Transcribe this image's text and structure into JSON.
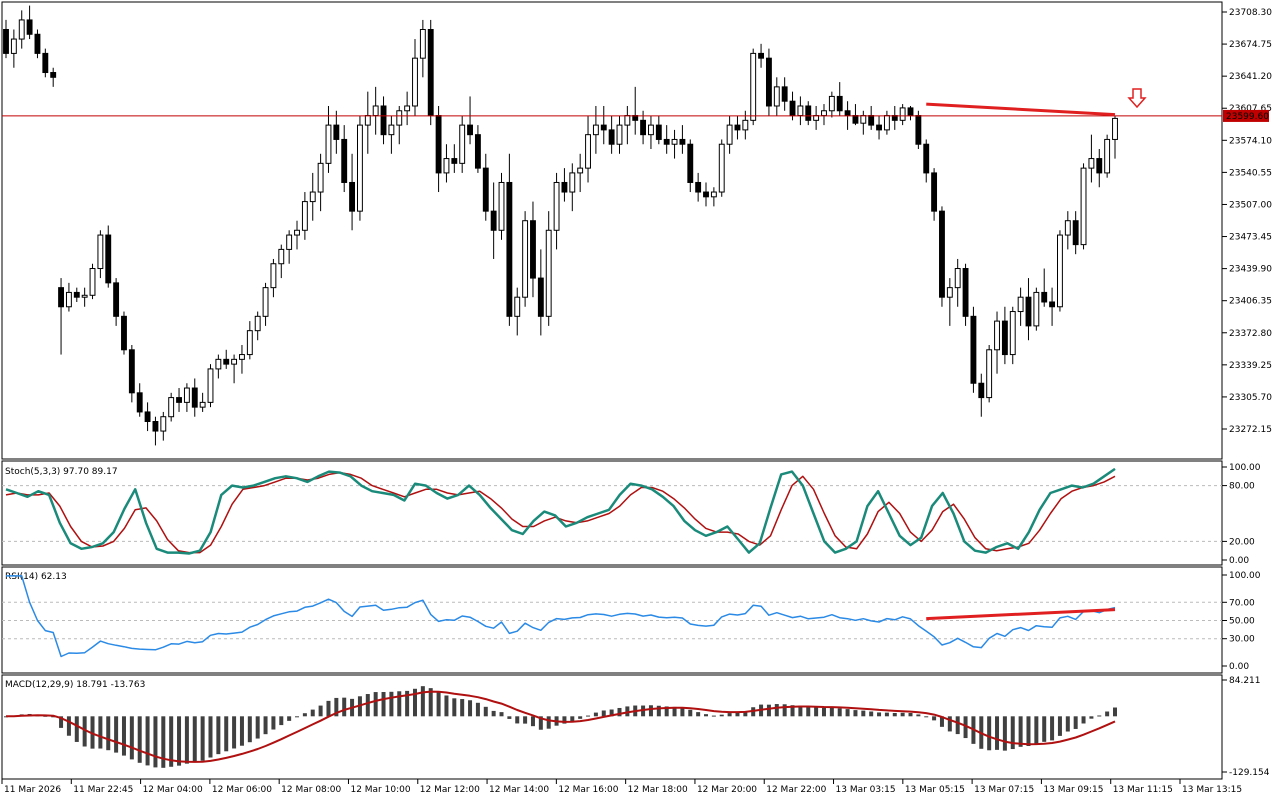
{
  "main": {
    "y_ticks": [
      "23708.30",
      "23674.75",
      "23641.20",
      "23607.65",
      "23574.10",
      "23540.55",
      "23507.00",
      "23473.45",
      "23439.90",
      "23406.35",
      "23372.80",
      "23339.25",
      "23305.70",
      "23272.15"
    ],
    "y_tick_values": [
      23708.3,
      23674.75,
      23641.2,
      23607.65,
      23574.1,
      23540.55,
      23507.0,
      23473.45,
      23439.9,
      23406.35,
      23372.8,
      23339.25,
      23305.7,
      23272.15
    ],
    "current_price": "23599.60",
    "price_line_color": "#c00000",
    "signal_arrow_icon": "hollow-down-arrow-icon",
    "signal_arrow_color": "#e02020"
  },
  "time_labels": [
    "11 Mar 2026",
    "11 Mar 22:45",
    "12 Mar 04:00",
    "12 Mar 06:00",
    "12 Mar 08:00",
    "12 Mar 10:00",
    "12 Mar 12:00",
    "12 Mar 14:00",
    "12 Mar 16:00",
    "12 Mar 18:00",
    "12 Mar 20:00",
    "12 Mar 22:00",
    "13 Mar 03:15",
    "13 Mar 05:15",
    "13 Mar 07:15",
    "13 Mar 09:15",
    "13 Mar 11:15",
    "13 Mar 13:15"
  ],
  "stoch": {
    "label": "Stoch(5,3,3) 97.70 89.17",
    "levels": [
      "100.00",
      "80.00",
      "20.00",
      "0.00"
    ],
    "main_color": "#1a8a7a",
    "signal_color": "#b01010"
  },
  "rsi": {
    "label": "RSI(14) 62.13",
    "levels": [
      "100.00",
      "70.00",
      "50.00",
      "30.00",
      "0.00"
    ],
    "line_color": "#2a8ae6"
  },
  "macd": {
    "label": "MACD(12,29,9) 18.791 -13.763",
    "levels": [
      "84.211",
      "-129.154"
    ],
    "hist_color": "#404040",
    "signal_color": "#b01010"
  },
  "divergence_color": "#e02020",
  "chart_data": {
    "type": "candlestick",
    "title": "",
    "ylim": [
      23255,
      23715
    ],
    "candles_ohlc": [
      [
        23690,
        23700,
        23660,
        23665
      ],
      [
        23665,
        23690,
        23650,
        23680
      ],
      [
        23680,
        23710,
        23670,
        23700
      ],
      [
        23700,
        23715,
        23680,
        23685
      ],
      [
        23685,
        23690,
        23660,
        23665
      ],
      [
        23665,
        23670,
        23640,
        23645
      ],
      [
        23645,
        23650,
        23630,
        23640
      ],
      [
        23420,
        23430,
        23350,
        23400
      ],
      [
        23400,
        23425,
        23395,
        23415
      ],
      [
        23415,
        23420,
        23405,
        23410
      ],
      [
        23410,
        23420,
        23400,
        23412
      ],
      [
        23412,
        23445,
        23408,
        23440
      ],
      [
        23440,
        23480,
        23430,
        23475
      ],
      [
        23475,
        23485,
        23420,
        23425
      ],
      [
        23425,
        23430,
        23380,
        23390
      ],
      [
        23390,
        23395,
        23350,
        23355
      ],
      [
        23355,
        23360,
        23300,
        23310
      ],
      [
        23310,
        23320,
        23285,
        23290
      ],
      [
        23290,
        23300,
        23270,
        23280
      ],
      [
        23280,
        23285,
        23255,
        23270
      ],
      [
        23270,
        23290,
        23260,
        23285
      ],
      [
        23285,
        23310,
        23280,
        23305
      ],
      [
        23305,
        23315,
        23290,
        23300
      ],
      [
        23300,
        23320,
        23290,
        23315
      ],
      [
        23315,
        23325,
        23285,
        23295
      ],
      [
        23295,
        23310,
        23290,
        23300
      ],
      [
        23300,
        23340,
        23295,
        23335
      ],
      [
        23335,
        23350,
        23325,
        23345
      ],
      [
        23345,
        23355,
        23335,
        23340
      ],
      [
        23340,
        23350,
        23320,
        23345
      ],
      [
        23345,
        23360,
        23330,
        23350
      ],
      [
        23350,
        23385,
        23345,
        23375
      ],
      [
        23375,
        23395,
        23365,
        23390
      ],
      [
        23390,
        23425,
        23380,
        23420
      ],
      [
        23420,
        23450,
        23410,
        23445
      ],
      [
        23445,
        23465,
        23430,
        23460
      ],
      [
        23460,
        23480,
        23445,
        23475
      ],
      [
        23475,
        23490,
        23460,
        23480
      ],
      [
        23480,
        23520,
        23470,
        23510
      ],
      [
        23510,
        23540,
        23490,
        23520
      ],
      [
        23520,
        23560,
        23500,
        23550
      ],
      [
        23550,
        23610,
        23540,
        23590
      ],
      [
        23590,
        23605,
        23560,
        23575
      ],
      [
        23575,
        23590,
        23520,
        23530
      ],
      [
        23530,
        23560,
        23480,
        23500
      ],
      [
        23500,
        23600,
        23490,
        23590
      ],
      [
        23590,
        23625,
        23560,
        23600
      ],
      [
        23600,
        23630,
        23580,
        23610
      ],
      [
        23610,
        23620,
        23570,
        23580
      ],
      [
        23580,
        23600,
        23560,
        23590
      ],
      [
        23590,
        23610,
        23570,
        23605
      ],
      [
        23605,
        23625,
        23590,
        23610
      ],
      [
        23610,
        23680,
        23600,
        23660
      ],
      [
        23660,
        23700,
        23640,
        23690
      ],
      [
        23690,
        23700,
        23590,
        23600
      ],
      [
        23600,
        23610,
        23520,
        23540
      ],
      [
        23540,
        23570,
        23530,
        23555
      ],
      [
        23555,
        23570,
        23540,
        23550
      ],
      [
        23550,
        23600,
        23540,
        23590
      ],
      [
        23590,
        23620,
        23570,
        23580
      ],
      [
        23580,
        23590,
        23540,
        23545
      ],
      [
        23545,
        23560,
        23490,
        23500
      ],
      [
        23500,
        23530,
        23450,
        23480
      ],
      [
        23480,
        23540,
        23470,
        23530
      ],
      [
        23530,
        23560,
        23380,
        23390
      ],
      [
        23390,
        23420,
        23370,
        23410
      ],
      [
        23410,
        23500,
        23400,
        23490
      ],
      [
        23490,
        23510,
        23410,
        23430
      ],
      [
        23430,
        23460,
        23370,
        23390
      ],
      [
        23390,
        23500,
        23380,
        23480
      ],
      [
        23480,
        23540,
        23460,
        23530
      ],
      [
        23530,
        23545,
        23510,
        23520
      ],
      [
        23520,
        23550,
        23500,
        23540
      ],
      [
        23540,
        23560,
        23520,
        23545
      ],
      [
        23545,
        23600,
        23530,
        23580
      ],
      [
        23580,
        23610,
        23560,
        23590
      ],
      [
        23590,
        23610,
        23570,
        23585
      ],
      [
        23585,
        23600,
        23560,
        23570
      ],
      [
        23570,
        23600,
        23560,
        23590
      ],
      [
        23590,
        23610,
        23570,
        23600
      ],
      [
        23600,
        23630,
        23580,
        23595
      ],
      [
        23595,
        23605,
        23570,
        23580
      ],
      [
        23580,
        23600,
        23565,
        23590
      ],
      [
        23590,
        23600,
        23570,
        23575
      ],
      [
        23575,
        23590,
        23560,
        23570
      ],
      [
        23570,
        23585,
        23555,
        23575
      ],
      [
        23575,
        23590,
        23560,
        23570
      ],
      [
        23570,
        23575,
        23520,
        23530
      ],
      [
        23530,
        23540,
        23510,
        23520
      ],
      [
        23520,
        23530,
        23505,
        23515
      ],
      [
        23515,
        23525,
        23505,
        23520
      ],
      [
        23520,
        23575,
        23515,
        23570
      ],
      [
        23570,
        23600,
        23560,
        23590
      ],
      [
        23590,
        23600,
        23575,
        23585
      ],
      [
        23585,
        23605,
        23575,
        23595
      ],
      [
        23595,
        23670,
        23590,
        23665
      ],
      [
        23665,
        23675,
        23650,
        23660
      ],
      [
        23660,
        23670,
        23600,
        23610
      ],
      [
        23610,
        23640,
        23600,
        23630
      ],
      [
        23630,
        23640,
        23605,
        23615
      ],
      [
        23615,
        23625,
        23595,
        23600
      ],
      [
        23600,
        23620,
        23590,
        23610
      ],
      [
        23610,
        23615,
        23590,
        23595
      ],
      [
        23595,
        23610,
        23585,
        23600
      ],
      [
        23600,
        23612,
        23590,
        23605
      ],
      [
        23605,
        23625,
        23598,
        23620
      ],
      [
        23620,
        23635,
        23600,
        23605
      ],
      [
        23605,
        23615,
        23585,
        23600
      ],
      [
        23600,
        23612,
        23590,
        23592
      ],
      [
        23592,
        23605,
        23580,
        23600
      ],
      [
        23600,
        23610,
        23585,
        23590
      ],
      [
        23590,
        23600,
        23575,
        23585
      ],
      [
        23585,
        23605,
        23580,
        23600
      ],
      [
        23600,
        23610,
        23585,
        23595
      ],
      [
        23595,
        23612,
        23590,
        23608
      ],
      [
        23608,
        23610,
        23595,
        23600
      ],
      [
        23600,
        23605,
        23565,
        23570
      ],
      [
        23570,
        23575,
        23530,
        23540
      ],
      [
        23540,
        23545,
        23490,
        23500
      ],
      [
        23500,
        23505,
        23400,
        23410
      ],
      [
        23410,
        23430,
        23380,
        23420
      ],
      [
        23420,
        23450,
        23400,
        23440
      ],
      [
        23440,
        23445,
        23380,
        23390
      ],
      [
        23390,
        23400,
        23310,
        23320
      ],
      [
        23320,
        23330,
        23285,
        23305
      ],
      [
        23305,
        23360,
        23300,
        23355
      ],
      [
        23355,
        23395,
        23330,
        23385
      ],
      [
        23385,
        23400,
        23340,
        23350
      ],
      [
        23350,
        23400,
        23340,
        23395
      ],
      [
        23395,
        23420,
        23380,
        23410
      ],
      [
        23410,
        23430,
        23365,
        23380
      ],
      [
        23380,
        23420,
        23375,
        23415
      ],
      [
        23415,
        23440,
        23400,
        23405
      ],
      [
        23405,
        23420,
        23380,
        23400
      ],
      [
        23400,
        23480,
        23395,
        23475
      ],
      [
        23475,
        23500,
        23460,
        23490
      ],
      [
        23490,
        23500,
        23455,
        23465
      ],
      [
        23465,
        23550,
        23460,
        23545
      ],
      [
        23545,
        23580,
        23530,
        23555
      ],
      [
        23555,
        23565,
        23525,
        23540
      ],
      [
        23540,
        23580,
        23535,
        23575
      ],
      [
        23575,
        23600,
        23555,
        23597
      ]
    ],
    "stoch_main": [
      76,
      72,
      68,
      74,
      70,
      40,
      18,
      12,
      14,
      18,
      30,
      55,
      76,
      40,
      12,
      8,
      8,
      7,
      10,
      30,
      70,
      80,
      78,
      80,
      84,
      88,
      90,
      88,
      84,
      90,
      95,
      94,
      90,
      80,
      74,
      72,
      70,
      64,
      82,
      80,
      72,
      66,
      70,
      80,
      70,
      56,
      44,
      32,
      28,
      42,
      52,
      48,
      36,
      40,
      46,
      50,
      54,
      70,
      82,
      80,
      76,
      68,
      58,
      42,
      32,
      26,
      30,
      36,
      22,
      8,
      18,
      56,
      92,
      95,
      80,
      50,
      20,
      8,
      12,
      20,
      58,
      74,
      50,
      26,
      16,
      24,
      58,
      72,
      50,
      20,
      10,
      8,
      14,
      18,
      12,
      30,
      54,
      72,
      76,
      80,
      78,
      82,
      90,
      98
    ],
    "stoch_signal": [
      70,
      72,
      70,
      70,
      72,
      58,
      36,
      20,
      14,
      15,
      20,
      34,
      54,
      56,
      42,
      22,
      10,
      8,
      8,
      16,
      36,
      60,
      76,
      78,
      80,
      84,
      88,
      88,
      86,
      88,
      92,
      94,
      92,
      88,
      80,
      76,
      72,
      68,
      72,
      76,
      76,
      72,
      70,
      72,
      74,
      66,
      56,
      44,
      36,
      36,
      42,
      46,
      42,
      40,
      42,
      46,
      50,
      58,
      70,
      78,
      78,
      74,
      66,
      56,
      44,
      34,
      30,
      30,
      28,
      20,
      16,
      26,
      54,
      80,
      90,
      76,
      50,
      26,
      14,
      12,
      28,
      52,
      62,
      50,
      30,
      20,
      32,
      52,
      60,
      44,
      24,
      12,
      10,
      12,
      14,
      18,
      32,
      50,
      66,
      74,
      78,
      80,
      84,
      90
    ]
  }
}
